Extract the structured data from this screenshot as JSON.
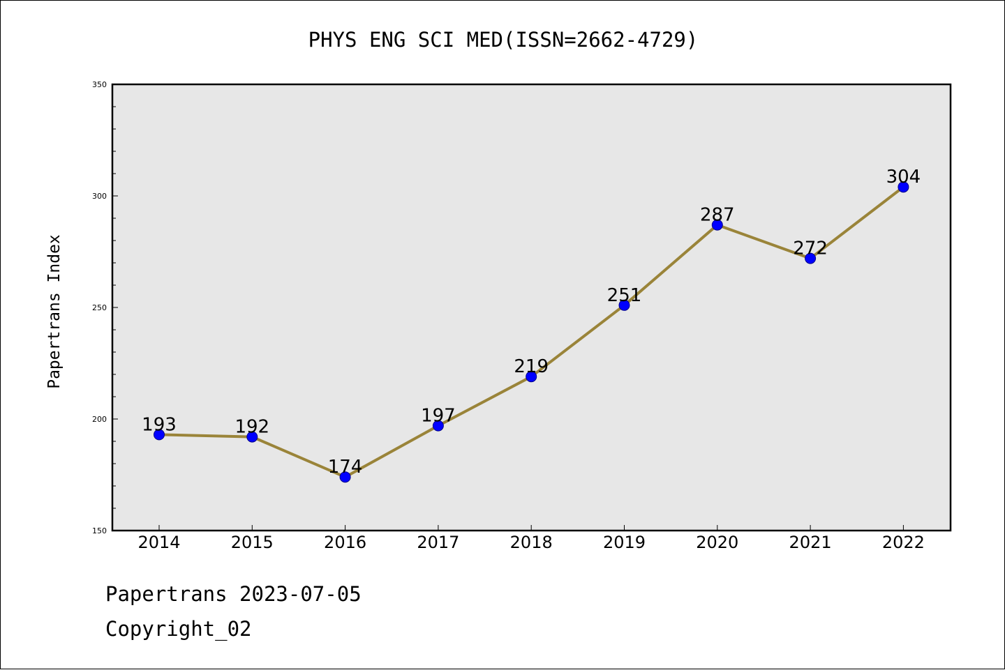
{
  "chart_data": {
    "type": "line",
    "title": "PHYS ENG SCI MED(ISSN=2662-4729)",
    "ylabel": "Papertrans Index",
    "xlabel": "",
    "categories": [
      "2014",
      "2015",
      "2016",
      "2017",
      "2018",
      "2019",
      "2020",
      "2021",
      "2022"
    ],
    "values": [
      193,
      192,
      174,
      197,
      219,
      251,
      287,
      272,
      304
    ],
    "data_labels": [
      "193",
      "192",
      "174",
      "197",
      "219",
      "251",
      "287",
      "272",
      "304"
    ],
    "ylim": [
      150,
      350
    ],
    "yticks": [
      "150",
      "200",
      "250",
      "300",
      "350"
    ],
    "grid": false,
    "legend": "none",
    "colors": {
      "line": "#9a8439",
      "marker_fill": "#0000ff",
      "marker_edge": "#00008b",
      "plot_background": "#e7e7e7",
      "axes_edge": "#000000"
    }
  },
  "footer": {
    "date_line": "Papertrans 2023-07-05",
    "copyright_line": "Copyright_02"
  }
}
